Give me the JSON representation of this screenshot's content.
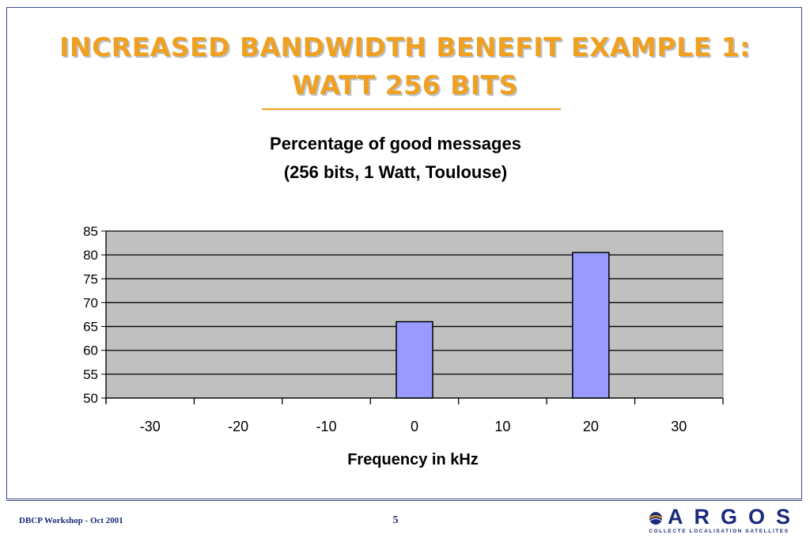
{
  "slide": {
    "title_line1": "INCREASED BANDWIDTH BENEFIT EXAMPLE 1:",
    "title_line2": "WATT 256 BITS"
  },
  "footer": {
    "left_text": "DBCP Workshop - Oct 2001",
    "page_number": "5",
    "logo_text": "ARGOS",
    "logo_tagline": "COLLECTE LOCALISATION SATELLITES"
  },
  "colors": {
    "title": "#f0a020",
    "plot_bg": "#c0c0c0",
    "bar_fill": "#9999ff",
    "brand": "#1a2a7a"
  },
  "chart_data": {
    "type": "bar",
    "title": "Percentage of good messages",
    "subtitle": "(256 bits, 1 Watt, Toulouse)",
    "xlabel": "Frequency in kHz",
    "ylabel": "",
    "categories": [
      "-30",
      "-20",
      "-10",
      "0",
      "10",
      "20",
      "30"
    ],
    "values": [
      null,
      null,
      null,
      66,
      null,
      80.5,
      null
    ],
    "ylim": [
      50,
      85
    ],
    "yticks": [
      50,
      55,
      60,
      65,
      70,
      75,
      80,
      85
    ],
    "grid": true,
    "legend": "none"
  }
}
